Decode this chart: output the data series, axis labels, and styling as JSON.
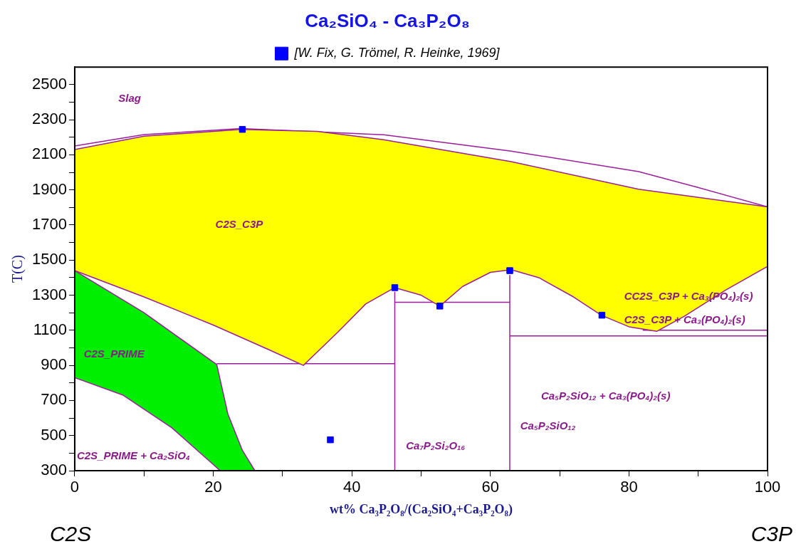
{
  "chart_data": {
    "type": "line",
    "title": "Ca₂SiO₄ - Ca₃P₂O₈",
    "xlabel": "wt% Ca₃P₂O₈/(Ca₂SiO₄+Ca₃P₂O₈)",
    "ylabel": "T(C)",
    "xlim": [
      0,
      100
    ],
    "ylim": [
      300,
      2600
    ],
    "xticks": [
      0,
      {
        "value": 10,
        "label": null
      },
      20,
      {
        "value": 30,
        "label": null
      },
      40,
      {
        "value": 50,
        "label": null
      },
      60,
      {
        "value": 70,
        "label": null
      },
      80,
      {
        "value": 90,
        "label": null
      },
      100
    ],
    "yticks": [
      300,
      {
        "value": 400,
        "label": null
      },
      500,
      {
        "value": 600,
        "label": null
      },
      700,
      {
        "value": 800,
        "label": null
      },
      900,
      {
        "value": 1000,
        "label": null
      },
      1100,
      {
        "value": 1200,
        "label": null
      },
      1300,
      {
        "value": 1400,
        "label": null
      },
      1500,
      {
        "value": 1600,
        "label": null
      },
      1700,
      {
        "value": 1800,
        "label": null
      },
      1900,
      {
        "value": 2000,
        "label": null
      },
      2100,
      {
        "value": 2200,
        "label": null
      },
      2300,
      {
        "value": 2400,
        "label": null
      },
      2500
    ],
    "grid": false,
    "legend": "top",
    "marker": "none",
    "line_style": "solid",
    "series": [
      {
        "type": "area",
        "color": "#ffff00",
        "x": [
          0,
          10,
          24,
          35,
          44.6,
          63,
          81.4,
          100,
          100,
          94,
          88,
          84,
          80,
          76,
          72,
          67,
          63,
          60,
          56,
          52.7,
          50,
          46.2,
          42,
          38,
          33,
          28,
          20,
          10,
          0
        ],
        "values": [
          2130,
          2206,
          2245,
          2234,
          2186,
          2061,
          1904,
          1803,
          1464,
          1330,
          1180,
          1094,
          1120,
          1186,
          1290,
          1400,
          1445,
          1430,
          1350,
          1238,
          1300,
          1343,
          1250,
          1090,
          900,
          990,
          1130,
          1290,
          1440
        ]
      },
      {
        "type": "area",
        "color": "#00ee00",
        "x": [
          0,
          10,
          20.5,
          22.1,
          24.2,
          26,
          21,
          19,
          14,
          7,
          0
        ],
        "values": [
          1440,
          1200,
          905,
          624,
          416,
          300,
          300,
          370,
          545,
          730,
          830
        ]
      },
      {
        "type": "line",
        "color": "#9b1f9b",
        "x": [
          0,
          10,
          24,
          44.6,
          63,
          81.4,
          89.4,
          100
        ],
        "values": [
          2150,
          2215,
          2250,
          2214,
          2121,
          2004,
          1920,
          1803
        ]
      },
      {
        "type": "line",
        "color": "#9b1f9b",
        "x": [
          20.5,
          46.2
        ],
        "values": [
          910,
          910
        ]
      },
      {
        "type": "line",
        "color": "#9b1f9b",
        "x": [
          46.2,
          46.2
        ],
        "values": [
          300,
          1320
        ]
      },
      {
        "type": "line",
        "color": "#9b1f9b",
        "x": [
          62.8,
          62.8
        ],
        "values": [
          300,
          1415
        ]
      },
      {
        "type": "line",
        "color": "#9b1f9b",
        "x": [
          46.2,
          62.8
        ],
        "values": [
          1260,
          1260
        ]
      },
      {
        "type": "line",
        "color": "#9b1f9b",
        "x": [
          62.8,
          100
        ],
        "values": [
          1068,
          1068
        ]
      },
      {
        "type": "line",
        "color": "#9b1f9b",
        "x": [
          82,
          100
        ],
        "values": [
          1100,
          1100
        ]
      },
      {
        "type": "scatter",
        "name": "[W. Fix, G. Trömel, R. Heinke, 1969]",
        "color": "#0000ff",
        "marker": "square",
        "x": [
          24.2,
          46.2,
          52.7,
          62.8,
          76.1,
          36.9
        ],
        "values": [
          2245,
          1343,
          1238,
          1440,
          1186,
          476
        ]
      }
    ],
    "annotations": [
      "Slag",
      "C2S_C3P",
      "C2S_PRIME",
      "C2S_PRIME + Ca₂SiO₄",
      "Ca₇P₂Si₂O₁₆",
      "Ca₅P₂SiO₁₂",
      "Ca₅P₂SiO₁₂ + Ca₃(PO₄)₂(s)",
      "CC2S_C3P + Ca₃(PO₄)₂(s)",
      "C2S_C3P + Ca₃(PO₄)₂(s)",
      "C2S",
      "C3P"
    ]
  }
}
